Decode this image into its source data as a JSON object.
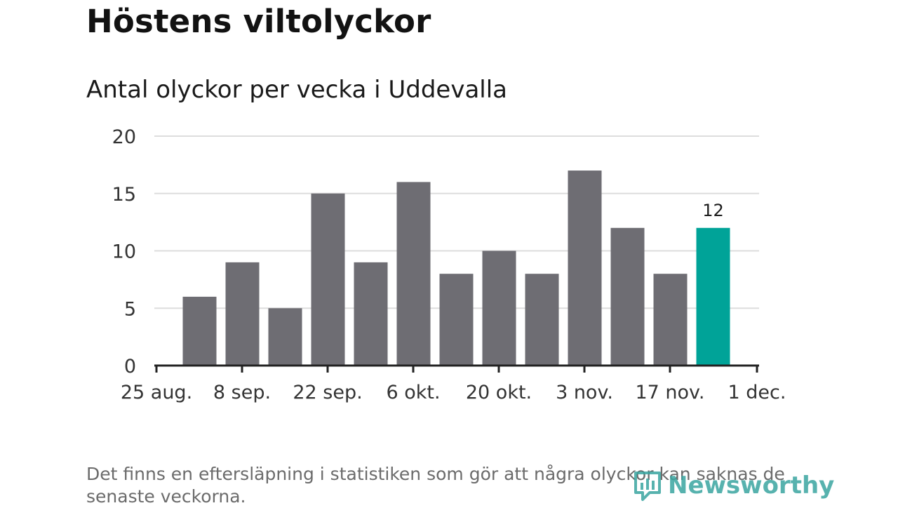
{
  "title": "Höstens viltolyckor",
  "subtitle": "Antal olyckor per vecka i Uddevalla",
  "note": "Det finns en eftersläpning i statistiken som gör att några olyckor kan saknas de senaste veckorna.",
  "brand": {
    "name": "Newsworthy",
    "icon": "newsworthy-logo-icon"
  },
  "colors": {
    "bar": "#6e6d73",
    "highlight": "#00a398",
    "grid": "#dddddd",
    "axis": "#222222"
  },
  "chart_data": {
    "type": "bar",
    "title": "Höstens viltolyckor",
    "subtitle": "Antal olyckor per vecka i Uddevalla",
    "xlabel": "",
    "ylabel": "",
    "ylim": [
      0,
      20
    ],
    "yticks": [
      0,
      5,
      10,
      15,
      20
    ],
    "xtick_labels": [
      "25 aug.",
      "8 sep.",
      "22 sep.",
      "6 okt.",
      "20 okt.",
      "3 nov.",
      "17 nov.",
      "1 dec."
    ],
    "values": [
      6,
      9,
      5,
      15,
      9,
      16,
      8,
      10,
      8,
      17,
      12,
      8,
      12
    ],
    "highlight_index": 12,
    "highlight_label": "12",
    "grid": true
  }
}
